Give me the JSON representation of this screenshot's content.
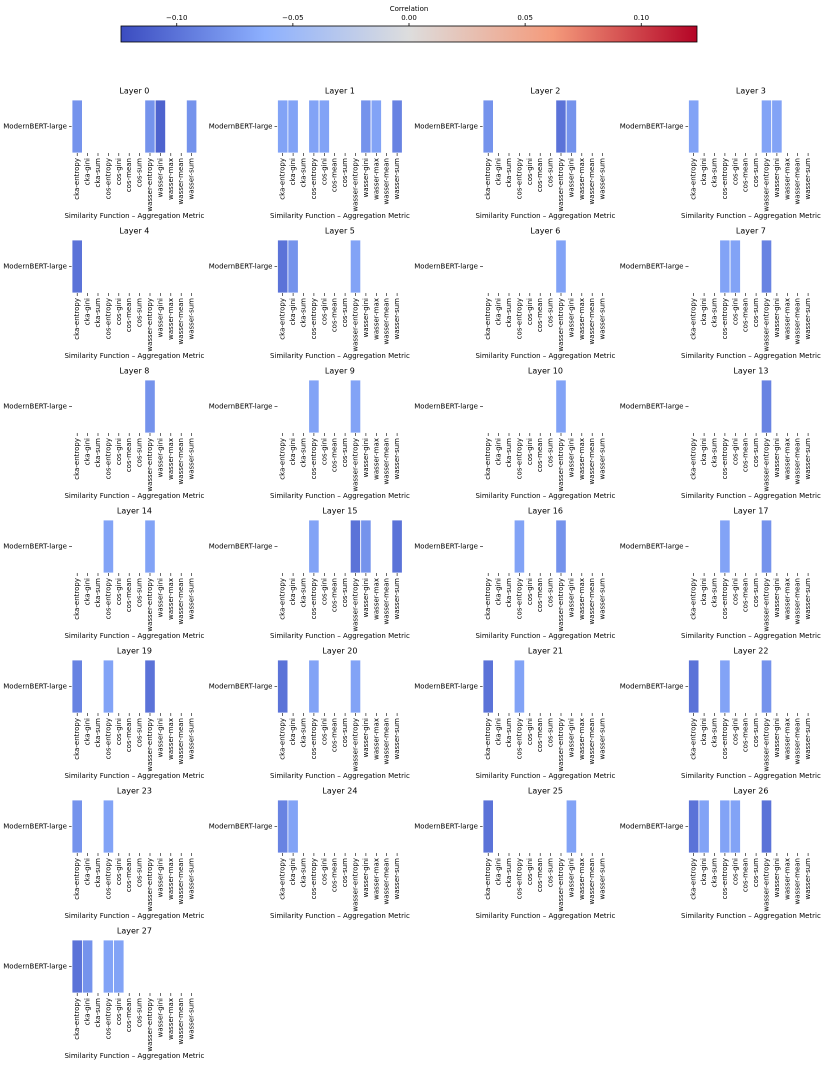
{
  "colorbar": {
    "label": "Correlation",
    "clim": [
      -0.124,
      0.124
    ],
    "ticks": [
      {
        "value": -0.1,
        "label": "−0.10"
      },
      {
        "value": -0.05,
        "label": "−0.05"
      },
      {
        "value": 0,
        "label": "0.00"
      },
      {
        "value": 0.05,
        "label": "0.05"
      },
      {
        "value": 0.1,
        "label": "0.10"
      }
    ],
    "colors": [
      "#3b4cc0",
      "#8db0fe",
      "#dddddd",
      "#f49a7b",
      "#b40426"
    ]
  },
  "chart_data": [
    {
      "type": "heatmap",
      "title": "Layer 0",
      "xlabel": "Similarity Function – Aggregation Metric",
      "rows": [
        "ModernBERT-large"
      ],
      "columns": [
        "cka-entropy",
        "cka-gini",
        "cka-sum",
        "cos-entropy",
        "cos-gini",
        "cos-mean",
        "cos-sum",
        "wasser-entropy",
        "wasser-gini",
        "wasser-max",
        "wasser-mean",
        "wasser-sum"
      ],
      "values": [
        [
          -0.08,
          null,
          null,
          null,
          null,
          null,
          null,
          -0.08,
          -0.11,
          null,
          null,
          -0.08
        ]
      ]
    },
    {
      "type": "heatmap",
      "title": "Layer 1",
      "xlabel": "Similarity Function – Aggregation Metric",
      "rows": [
        "ModernBERT-large"
      ],
      "columns": [
        "cka-entropy",
        "cka-gini",
        "cka-sum",
        "cos-entropy",
        "cos-gini",
        "cos-mean",
        "cos-sum",
        "wasser-entropy",
        "wasser-gini",
        "wasser-max",
        "wasser-mean",
        "wasser-sum"
      ],
      "values": [
        [
          -0.07,
          -0.07,
          null,
          -0.07,
          -0.07,
          null,
          null,
          null,
          -0.08,
          -0.07,
          null,
          -0.09
        ]
      ]
    },
    {
      "type": "heatmap",
      "title": "Layer 2",
      "xlabel": "Similarity Function – Aggregation Metric",
      "rows": [
        "ModernBERT-large"
      ],
      "columns": [
        "cka-entropy",
        "cka-gini",
        "cka-sum",
        "cos-entropy",
        "cos-gini",
        "cos-mean",
        "cos-sum",
        "wasser-entropy",
        "wasser-gini",
        "wasser-max",
        "wasser-mean",
        "wasser-sum"
      ],
      "values": [
        [
          -0.08,
          null,
          null,
          null,
          null,
          null,
          null,
          -0.1,
          -0.08,
          null,
          null,
          null
        ]
      ]
    },
    {
      "type": "heatmap",
      "title": "Layer 3",
      "xlabel": "Similarity Function – Aggregation Metric",
      "rows": [
        "ModernBERT-large"
      ],
      "columns": [
        "cka-entropy",
        "cka-gini",
        "cka-sum",
        "cos-entropy",
        "cos-gini",
        "cos-mean",
        "cos-sum",
        "wasser-entropy",
        "wasser-gini",
        "wasser-max",
        "wasser-mean",
        "wasser-sum"
      ],
      "values": [
        [
          -0.07,
          null,
          null,
          null,
          null,
          null,
          null,
          -0.07,
          -0.07,
          null,
          null,
          null
        ]
      ]
    },
    {
      "type": "heatmap",
      "title": "Layer 4",
      "xlabel": "Similarity Function – Aggregation Metric",
      "rows": [
        "ModernBERT-large"
      ],
      "columns": [
        "cka-entropy",
        "cka-gini",
        "cka-sum",
        "cos-entropy",
        "cos-gini",
        "cos-mean",
        "cos-sum",
        "wasser-entropy",
        "wasser-gini",
        "wasser-max",
        "wasser-mean",
        "wasser-sum"
      ],
      "values": [
        [
          -0.1,
          null,
          null,
          null,
          null,
          null,
          null,
          null,
          null,
          null,
          null,
          null
        ]
      ]
    },
    {
      "type": "heatmap",
      "title": "Layer 5",
      "xlabel": "Similarity Function – Aggregation Metric",
      "rows": [
        "ModernBERT-large"
      ],
      "columns": [
        "cka-entropy",
        "cka-gini",
        "cka-sum",
        "cos-entropy",
        "cos-gini",
        "cos-mean",
        "cos-sum",
        "wasser-entropy",
        "wasser-gini",
        "wasser-max",
        "wasser-mean",
        "wasser-sum"
      ],
      "values": [
        [
          -0.1,
          -0.08,
          null,
          null,
          null,
          null,
          null,
          -0.07,
          null,
          null,
          null,
          null
        ]
      ]
    },
    {
      "type": "heatmap",
      "title": "Layer 6",
      "xlabel": "Similarity Function – Aggregation Metric",
      "rows": [
        "ModernBERT-large"
      ],
      "columns": [
        "cka-entropy",
        "cka-gini",
        "cka-sum",
        "cos-entropy",
        "cos-gini",
        "cos-mean",
        "cos-sum",
        "wasser-entropy",
        "wasser-gini",
        "wasser-max",
        "wasser-mean",
        "wasser-sum"
      ],
      "values": [
        [
          null,
          null,
          null,
          null,
          null,
          null,
          null,
          -0.07,
          null,
          null,
          null,
          null
        ]
      ]
    },
    {
      "type": "heatmap",
      "title": "Layer 7",
      "xlabel": "Similarity Function – Aggregation Metric",
      "rows": [
        "ModernBERT-large"
      ],
      "columns": [
        "cka-entropy",
        "cka-gini",
        "cka-sum",
        "cos-entropy",
        "cos-gini",
        "cos-mean",
        "cos-sum",
        "wasser-entropy",
        "wasser-gini",
        "wasser-max",
        "wasser-mean",
        "wasser-sum"
      ],
      "values": [
        [
          null,
          null,
          null,
          -0.07,
          -0.07,
          null,
          null,
          -0.09,
          null,
          null,
          null,
          null
        ]
      ]
    },
    {
      "type": "heatmap",
      "title": "Layer 8",
      "xlabel": "Similarity Function – Aggregation Metric",
      "rows": [
        "ModernBERT-large"
      ],
      "columns": [
        "cka-entropy",
        "cka-gini",
        "cka-sum",
        "cos-entropy",
        "cos-gini",
        "cos-mean",
        "cos-sum",
        "wasser-entropy",
        "wasser-gini",
        "wasser-max",
        "wasser-mean",
        "wasser-sum"
      ],
      "values": [
        [
          null,
          null,
          null,
          null,
          null,
          null,
          null,
          -0.08,
          null,
          null,
          null,
          null
        ]
      ]
    },
    {
      "type": "heatmap",
      "title": "Layer 9",
      "xlabel": "Similarity Function – Aggregation Metric",
      "rows": [
        "ModernBERT-large"
      ],
      "columns": [
        "cka-entropy",
        "cka-gini",
        "cka-sum",
        "cos-entropy",
        "cos-gini",
        "cos-mean",
        "cos-sum",
        "wasser-entropy",
        "wasser-gini",
        "wasser-max",
        "wasser-mean",
        "wasser-sum"
      ],
      "values": [
        [
          null,
          null,
          null,
          -0.07,
          null,
          null,
          null,
          -0.07,
          null,
          null,
          null,
          null
        ]
      ]
    },
    {
      "type": "heatmap",
      "title": "Layer 10",
      "xlabel": "Similarity Function – Aggregation Metric",
      "rows": [
        "ModernBERT-large"
      ],
      "columns": [
        "cka-entropy",
        "cka-gini",
        "cka-sum",
        "cos-entropy",
        "cos-gini",
        "cos-mean",
        "cos-sum",
        "wasser-entropy",
        "wasser-gini",
        "wasser-max",
        "wasser-mean",
        "wasser-sum"
      ],
      "values": [
        [
          null,
          null,
          null,
          null,
          null,
          null,
          null,
          -0.07,
          null,
          null,
          null,
          null
        ]
      ]
    },
    {
      "type": "heatmap",
      "title": "Layer 13",
      "xlabel": "Similarity Function – Aggregation Metric",
      "rows": [
        "ModernBERT-large"
      ],
      "columns": [
        "cka-entropy",
        "cka-gini",
        "cka-sum",
        "cos-entropy",
        "cos-gini",
        "cos-mean",
        "cos-sum",
        "wasser-entropy",
        "wasser-gini",
        "wasser-max",
        "wasser-mean",
        "wasser-sum"
      ],
      "values": [
        [
          null,
          null,
          null,
          null,
          null,
          null,
          null,
          -0.09,
          null,
          null,
          null,
          null
        ]
      ]
    },
    {
      "type": "heatmap",
      "title": "Layer 14",
      "xlabel": "Similarity Function – Aggregation Metric",
      "rows": [
        "ModernBERT-large"
      ],
      "columns": [
        "cka-entropy",
        "cka-gini",
        "cka-sum",
        "cos-entropy",
        "cos-gini",
        "cos-mean",
        "cos-sum",
        "wasser-entropy",
        "wasser-gini",
        "wasser-max",
        "wasser-mean",
        "wasser-sum"
      ],
      "values": [
        [
          null,
          null,
          null,
          -0.07,
          null,
          null,
          null,
          -0.07,
          null,
          null,
          null,
          null
        ]
      ]
    },
    {
      "type": "heatmap",
      "title": "Layer 15",
      "xlabel": "Similarity Function – Aggregation Metric",
      "rows": [
        "ModernBERT-large"
      ],
      "columns": [
        "cka-entropy",
        "cka-gini",
        "cka-sum",
        "cos-entropy",
        "cos-gini",
        "cos-mean",
        "cos-sum",
        "wasser-entropy",
        "wasser-gini",
        "wasser-max",
        "wasser-mean",
        "wasser-sum"
      ],
      "values": [
        [
          null,
          null,
          null,
          -0.07,
          null,
          null,
          null,
          -0.1,
          -0.08,
          null,
          null,
          -0.1
        ]
      ]
    },
    {
      "type": "heatmap",
      "title": "Layer 16",
      "xlabel": "Similarity Function – Aggregation Metric",
      "rows": [
        "ModernBERT-large"
      ],
      "columns": [
        "cka-entropy",
        "cka-gini",
        "cka-sum",
        "cos-entropy",
        "cos-gini",
        "cos-mean",
        "cos-sum",
        "wasser-entropy",
        "wasser-gini",
        "wasser-max",
        "wasser-mean",
        "wasser-sum"
      ],
      "values": [
        [
          null,
          null,
          null,
          -0.07,
          null,
          null,
          null,
          -0.08,
          null,
          null,
          null,
          null
        ]
      ]
    },
    {
      "type": "heatmap",
      "title": "Layer 17",
      "xlabel": "Similarity Function – Aggregation Metric",
      "rows": [
        "ModernBERT-large"
      ],
      "columns": [
        "cka-entropy",
        "cka-gini",
        "cka-sum",
        "cos-entropy",
        "cos-gini",
        "cos-mean",
        "cos-sum",
        "wasser-entropy",
        "wasser-gini",
        "wasser-max",
        "wasser-mean",
        "wasser-sum"
      ],
      "values": [
        [
          null,
          null,
          null,
          -0.07,
          null,
          null,
          null,
          -0.08,
          null,
          null,
          null,
          null
        ]
      ]
    },
    {
      "type": "heatmap",
      "title": "Layer 19",
      "xlabel": "Similarity Function – Aggregation Metric",
      "rows": [
        "ModernBERT-large"
      ],
      "columns": [
        "cka-entropy",
        "cka-gini",
        "cka-sum",
        "cos-entropy",
        "cos-gini",
        "cos-mean",
        "cos-sum",
        "wasser-entropy",
        "wasser-gini",
        "wasser-max",
        "wasser-mean",
        "wasser-sum"
      ],
      "values": [
        [
          -0.09,
          null,
          null,
          -0.07,
          null,
          null,
          null,
          -0.1,
          null,
          null,
          null,
          null
        ]
      ]
    },
    {
      "type": "heatmap",
      "title": "Layer 20",
      "xlabel": "Similarity Function – Aggregation Metric",
      "rows": [
        "ModernBERT-large"
      ],
      "columns": [
        "cka-entropy",
        "cka-gini",
        "cka-sum",
        "cos-entropy",
        "cos-gini",
        "cos-mean",
        "cos-sum",
        "wasser-entropy",
        "wasser-gini",
        "wasser-max",
        "wasser-mean",
        "wasser-sum"
      ],
      "values": [
        [
          -0.1,
          null,
          null,
          -0.07,
          null,
          null,
          null,
          -0.07,
          null,
          null,
          null,
          null
        ]
      ]
    },
    {
      "type": "heatmap",
      "title": "Layer 21",
      "xlabel": "Similarity Function – Aggregation Metric",
      "rows": [
        "ModernBERT-large"
      ],
      "columns": [
        "cka-entropy",
        "cka-gini",
        "cka-sum",
        "cos-entropy",
        "cos-gini",
        "cos-mean",
        "cos-sum",
        "wasser-entropy",
        "wasser-gini",
        "wasser-max",
        "wasser-mean",
        "wasser-sum"
      ],
      "values": [
        [
          -0.1,
          null,
          null,
          -0.07,
          null,
          null,
          null,
          null,
          null,
          null,
          null,
          null
        ]
      ]
    },
    {
      "type": "heatmap",
      "title": "Layer 22",
      "xlabel": "Similarity Function – Aggregation Metric",
      "rows": [
        "ModernBERT-large"
      ],
      "columns": [
        "cka-entropy",
        "cka-gini",
        "cka-sum",
        "cos-entropy",
        "cos-gini",
        "cos-mean",
        "cos-sum",
        "wasser-entropy",
        "wasser-gini",
        "wasser-max",
        "wasser-mean",
        "wasser-sum"
      ],
      "values": [
        [
          -0.1,
          null,
          null,
          -0.07,
          null,
          null,
          null,
          -0.08,
          null,
          null,
          null,
          null
        ]
      ]
    },
    {
      "type": "heatmap",
      "title": "Layer 23",
      "xlabel": "Similarity Function – Aggregation Metric",
      "rows": [
        "ModernBERT-large"
      ],
      "columns": [
        "cka-entropy",
        "cka-gini",
        "cka-sum",
        "cos-entropy",
        "cos-gini",
        "cos-mean",
        "cos-sum",
        "wasser-entropy",
        "wasser-gini",
        "wasser-max",
        "wasser-mean",
        "wasser-sum"
      ],
      "values": [
        [
          -0.08,
          null,
          null,
          -0.07,
          null,
          null,
          null,
          null,
          null,
          null,
          null,
          null
        ]
      ]
    },
    {
      "type": "heatmap",
      "title": "Layer 24",
      "xlabel": "Similarity Function – Aggregation Metric",
      "rows": [
        "ModernBERT-large"
      ],
      "columns": [
        "cka-entropy",
        "cka-gini",
        "cka-sum",
        "cos-entropy",
        "cos-gini",
        "cos-mean",
        "cos-sum",
        "wasser-entropy",
        "wasser-gini",
        "wasser-max",
        "wasser-mean",
        "wasser-sum"
      ],
      "values": [
        [
          -0.09,
          -0.07,
          null,
          null,
          null,
          null,
          null,
          null,
          null,
          null,
          null,
          null
        ]
      ]
    },
    {
      "type": "heatmap",
      "title": "Layer 25",
      "xlabel": "Similarity Function – Aggregation Metric",
      "rows": [
        "ModernBERT-large"
      ],
      "columns": [
        "cka-entropy",
        "cka-gini",
        "cka-sum",
        "cos-entropy",
        "cos-gini",
        "cos-mean",
        "cos-sum",
        "wasser-entropy",
        "wasser-gini",
        "wasser-max",
        "wasser-mean",
        "wasser-sum"
      ],
      "values": [
        [
          -0.1,
          null,
          null,
          null,
          null,
          null,
          null,
          null,
          -0.07,
          null,
          null,
          null
        ]
      ]
    },
    {
      "type": "heatmap",
      "title": "Layer 26",
      "xlabel": "Similarity Function – Aggregation Metric",
      "rows": [
        "ModernBERT-large"
      ],
      "columns": [
        "cka-entropy",
        "cka-gini",
        "cka-sum",
        "cos-entropy",
        "cos-gini",
        "cos-mean",
        "cos-sum",
        "wasser-entropy",
        "wasser-gini",
        "wasser-max",
        "wasser-mean",
        "wasser-sum"
      ],
      "values": [
        [
          -0.1,
          -0.07,
          null,
          -0.07,
          -0.07,
          null,
          null,
          -0.1,
          null,
          null,
          null,
          null
        ]
      ]
    },
    {
      "type": "heatmap",
      "title": "Layer 27",
      "xlabel": "Similarity Function – Aggregation Metric",
      "rows": [
        "ModernBERT-large"
      ],
      "columns": [
        "cka-entropy",
        "cka-gini",
        "cka-sum",
        "cos-entropy",
        "cos-gini",
        "cos-mean",
        "cos-sum",
        "wasser-entropy",
        "wasser-gini",
        "wasser-max",
        "wasser-mean",
        "wasser-sum"
      ],
      "values": [
        [
          -0.1,
          -0.08,
          null,
          -0.07,
          -0.07,
          null,
          null,
          null,
          null,
          null,
          null,
          null
        ]
      ]
    }
  ]
}
